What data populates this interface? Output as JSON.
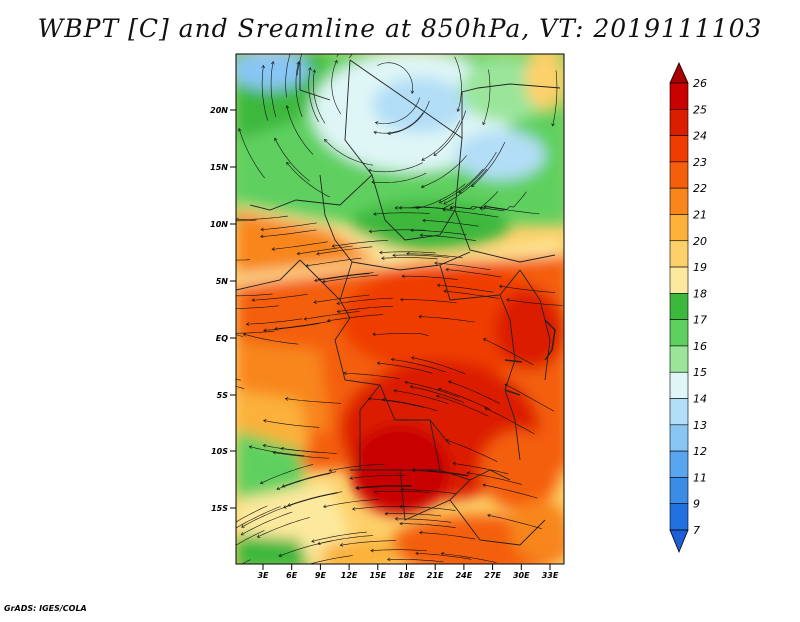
{
  "title": "WBPT [C] and Sreamline at 850hPa, VT: 2019111103",
  "footer": "GrADS: IGES/COLA",
  "map": {
    "lat_labels": [
      "20N",
      "15N",
      "10N",
      "5N",
      "EQ",
      "5S",
      "10S",
      "15S"
    ],
    "lon_labels": [
      "3E",
      "6E",
      "9E",
      "12E",
      "15E",
      "18E",
      "21E",
      "24E",
      "27E",
      "30E",
      "33E"
    ]
  },
  "colorbar": {
    "labels": [
      "26",
      "25",
      "24",
      "23",
      "22",
      "21",
      "20",
      "19",
      "18",
      "17",
      "16",
      "15",
      "14",
      "13",
      "12",
      "11",
      "9",
      "7"
    ],
    "colors": [
      "#c80000",
      "#dc1e00",
      "#ef3c00",
      "#f45f0c",
      "#f8861c",
      "#fbb13a",
      "#fdd06a",
      "#fde99d",
      "#3cb83c",
      "#5fd05f",
      "#9be59b",
      "#dff6f6",
      "#b3def7",
      "#89c6f4",
      "#5aa6ee",
      "#3c8ce6",
      "#2271e0"
    ],
    "top_arrow_color": "#a90000",
    "bottom_arrow_color": "#1c5fd6"
  }
}
